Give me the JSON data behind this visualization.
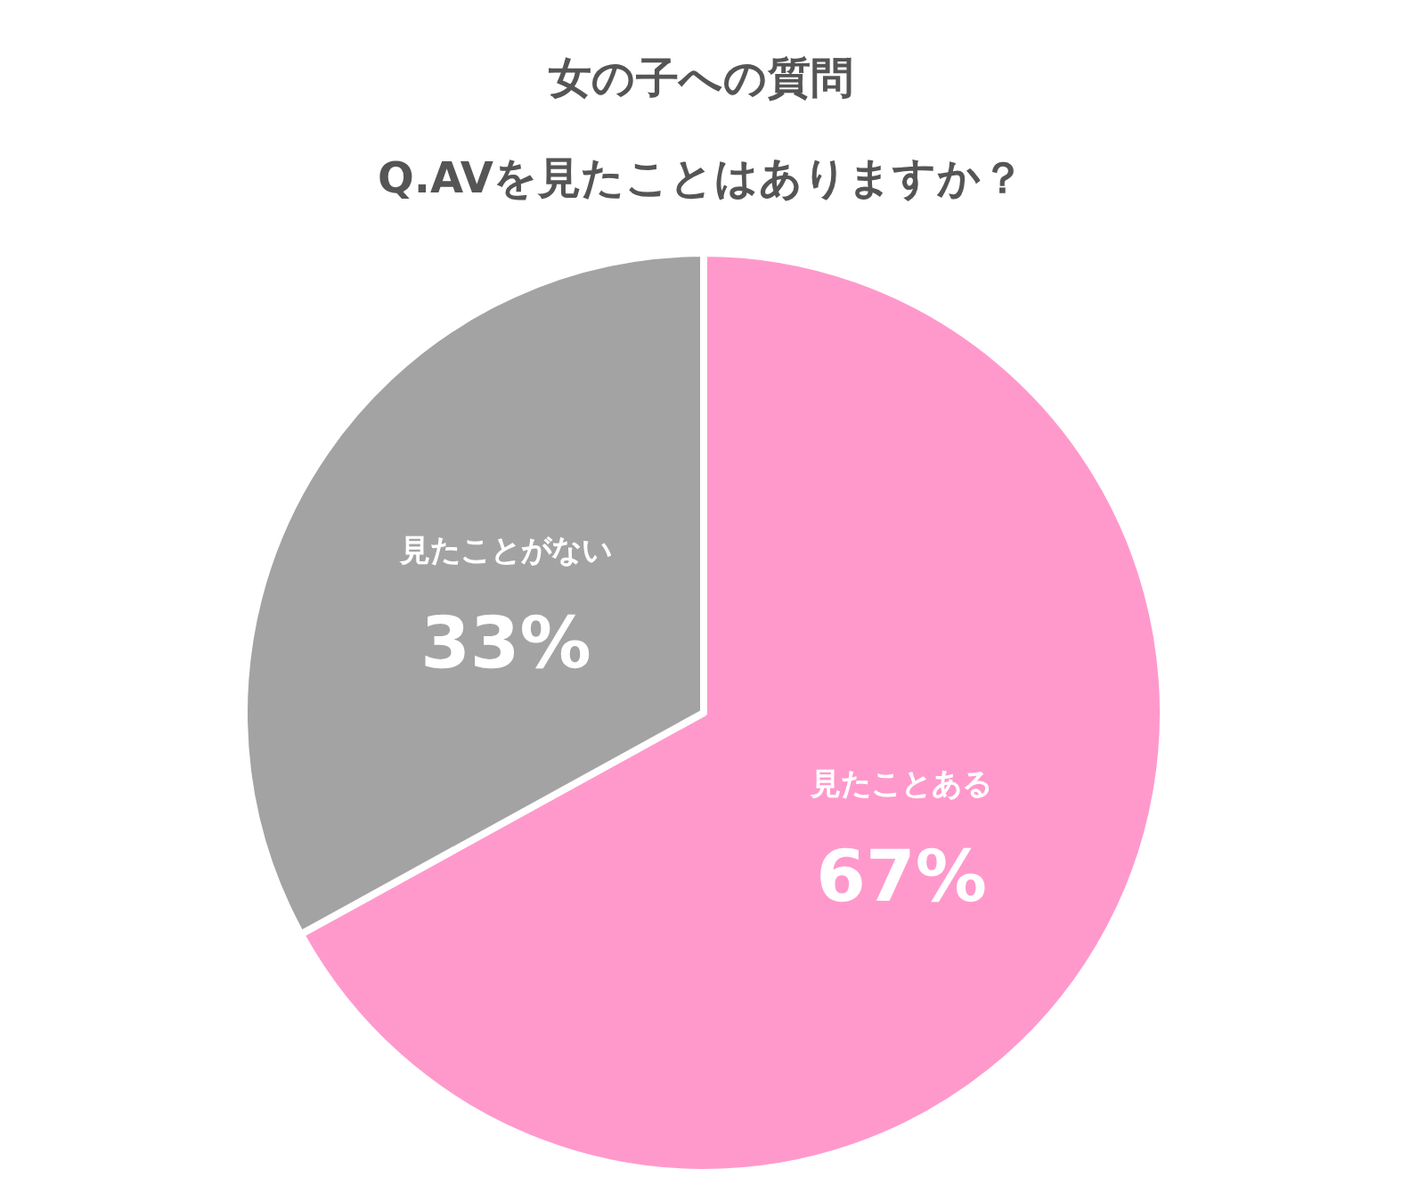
{
  "chart_data": {
    "type": "pie",
    "title": "女の子への質問",
    "subtitle": "Q.AVを見たことはありますか？",
    "categories": [
      "見たことある",
      "見たことがない"
    ],
    "values": [
      67,
      33
    ],
    "colors": [
      "#ff99cc",
      "#a3a3a3"
    ],
    "value_labels": [
      "67%",
      "33%"
    ],
    "legend": false
  }
}
